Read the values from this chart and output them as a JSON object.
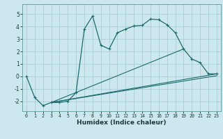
{
  "xlabel": "Humidex (Indice chaleur)",
  "bg_color": "#cce8ee",
  "grid_color": "#aacdd6",
  "line_color": "#1a6b6b",
  "xlim": [
    -0.5,
    23.5
  ],
  "ylim": [
    -2.8,
    5.8
  ],
  "yticks": [
    -2,
    -1,
    0,
    1,
    2,
    3,
    4,
    5
  ],
  "xticks": [
    0,
    1,
    2,
    3,
    4,
    5,
    6,
    7,
    8,
    9,
    10,
    11,
    12,
    13,
    14,
    15,
    16,
    17,
    18,
    19,
    20,
    21,
    22,
    23
  ],
  "line1_x": [
    0,
    1,
    2,
    3,
    4,
    5,
    6,
    7,
    8,
    9,
    10,
    11,
    12,
    13,
    14,
    15,
    16,
    17,
    18,
    19,
    20,
    21,
    22,
    23
  ],
  "line1_y": [
    0.0,
    -1.7,
    -2.35,
    -2.1,
    -2.1,
    -2.0,
    -1.3,
    3.8,
    4.85,
    2.5,
    2.2,
    3.5,
    3.8,
    4.05,
    4.1,
    4.6,
    4.55,
    4.15,
    3.5,
    2.2,
    1.4,
    1.1,
    0.2,
    0.2
  ],
  "line2_x": [
    3,
    19
  ],
  "line2_y": [
    -2.1,
    2.2
  ],
  "line3_x": [
    3,
    23
  ],
  "line3_y": [
    -2.1,
    0.2
  ],
  "line4_x": [
    3,
    23
  ],
  "line4_y": [
    -2.1,
    0.05
  ],
  "xlabel_fontsize": 6.5,
  "xlabel_color": "#1a3a3a"
}
